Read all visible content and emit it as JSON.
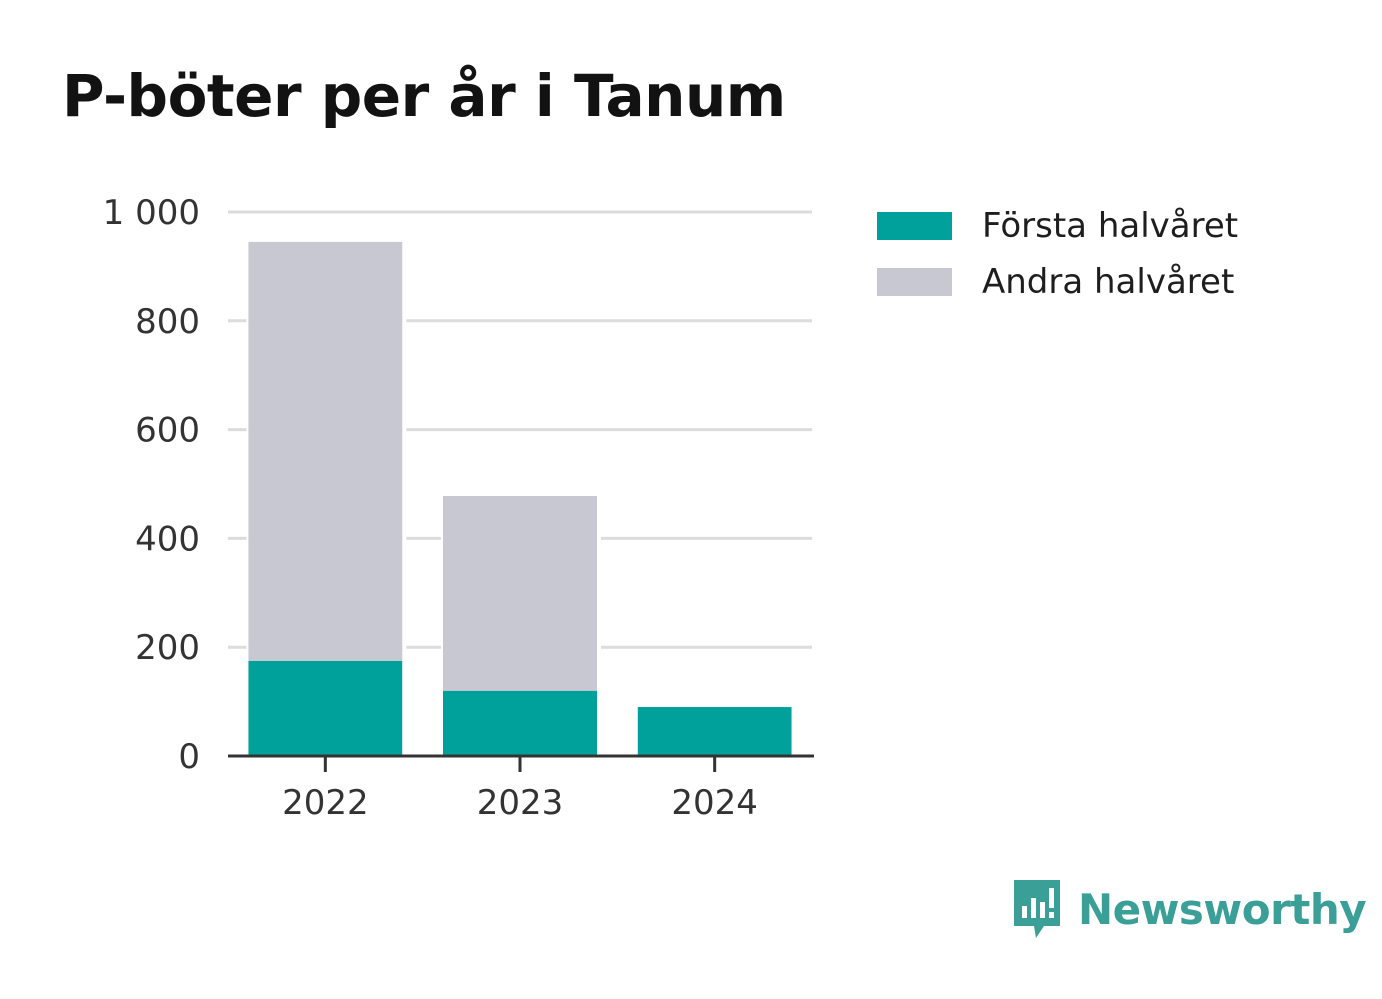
{
  "title": "P-böter per år i Tanum",
  "colors": {
    "first_half": "#00a19a",
    "second_half": "#c8c8d2",
    "grid": "#dcdcdc",
    "axis": "#333333",
    "brand": "#3a9f97"
  },
  "legend": {
    "items": [
      {
        "label": "Första halvåret",
        "color": "#00a19a"
      },
      {
        "label": "Andra halvåret",
        "color": "#c8c8d2"
      }
    ]
  },
  "brand": {
    "name": "Newsworthy",
    "icon": "newsworthy-logo-icon"
  },
  "chart_data": {
    "type": "bar",
    "stacked": true,
    "categories": [
      "2022",
      "2023",
      "2024"
    ],
    "series": [
      {
        "name": "Första halvåret",
        "values": [
          175,
          120,
          90
        ]
      },
      {
        "name": "Andra halvåret",
        "values": [
          770,
          358,
          0
        ]
      }
    ],
    "title": "P-böter per år i Tanum",
    "xlabel": "",
    "ylabel": "",
    "ylim": [
      0,
      1000
    ],
    "yticks": [
      0,
      200,
      400,
      600,
      800,
      1000
    ],
    "ytick_labels": [
      "0",
      "200",
      "400",
      "600",
      "800",
      "1 000"
    ],
    "grid": true,
    "legend_position": "top-right"
  }
}
